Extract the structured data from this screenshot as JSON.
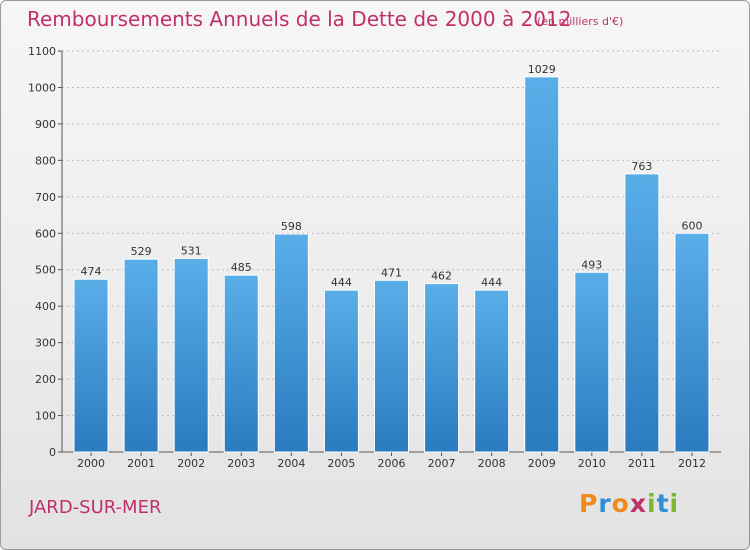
{
  "header": {
    "title": "Remboursements Annuels de la Dette de 2000 à 2012",
    "subtitle": "(en milliers d'€)"
  },
  "footer": {
    "commune": "JARD-SUR-MER",
    "logo_letters": [
      "P",
      "r",
      "o",
      "x",
      "i",
      "t",
      "i"
    ],
    "logo_colors": [
      "#f08a1c",
      "#2f8fd6",
      "#f08a1c",
      "#c0306a",
      "#7cb82f",
      "#2f8fd6",
      "#7cb82f"
    ]
  },
  "chart_data": {
    "type": "bar",
    "title": "Remboursements Annuels de la Dette de 2000 à 2012",
    "subtitle": "(en milliers d'€)",
    "xlabel": "",
    "ylabel": "",
    "categories": [
      "2000",
      "2001",
      "2002",
      "2003",
      "2004",
      "2005",
      "2006",
      "2007",
      "2008",
      "2009",
      "2010",
      "2011",
      "2012"
    ],
    "values": [
      474,
      529,
      531,
      485,
      598,
      444,
      471,
      462,
      444,
      1029,
      493,
      763,
      600
    ],
    "ylim": [
      0,
      1100
    ],
    "yticks": [
      0,
      100,
      200,
      300,
      400,
      500,
      600,
      700,
      800,
      900,
      1000,
      1100
    ],
    "grid": true,
    "bar_color_top": "#5aaee8",
    "bar_color_bottom": "#2a7bbf"
  }
}
